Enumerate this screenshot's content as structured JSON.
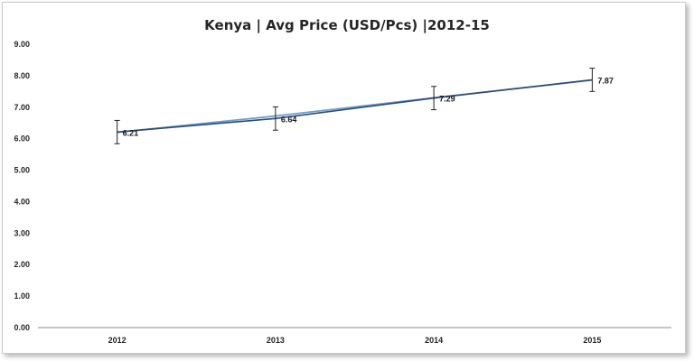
{
  "chart_data": {
    "type": "line",
    "title": "Kenya  | Avg Price (USD/Pcs) |2012-15",
    "xlabel": "",
    "ylabel": "",
    "categories": [
      "2012",
      "2013",
      "2014",
      "2015"
    ],
    "ylim": [
      0,
      9
    ],
    "ytick_labels": [
      "0.00",
      "1.00",
      "2.00",
      "3.00",
      "4.00",
      "5.00",
      "6.00",
      "7.00",
      "8.00",
      "9.00"
    ],
    "grid": false,
    "legend": "none",
    "series": [
      {
        "values": [
          6.21,
          6.64,
          7.29,
          7.87
        ],
        "data_labels": [
          "6.21",
          "6.64",
          "7.29",
          "7.87"
        ],
        "error": [
          0.37,
          0.37,
          0.37,
          0.37
        ],
        "color": "#2f4b73"
      },
      {
        "values": [
          6.2,
          6.72,
          7.3,
          7.86
        ],
        "color": "#6f9fd0"
      }
    ]
  }
}
